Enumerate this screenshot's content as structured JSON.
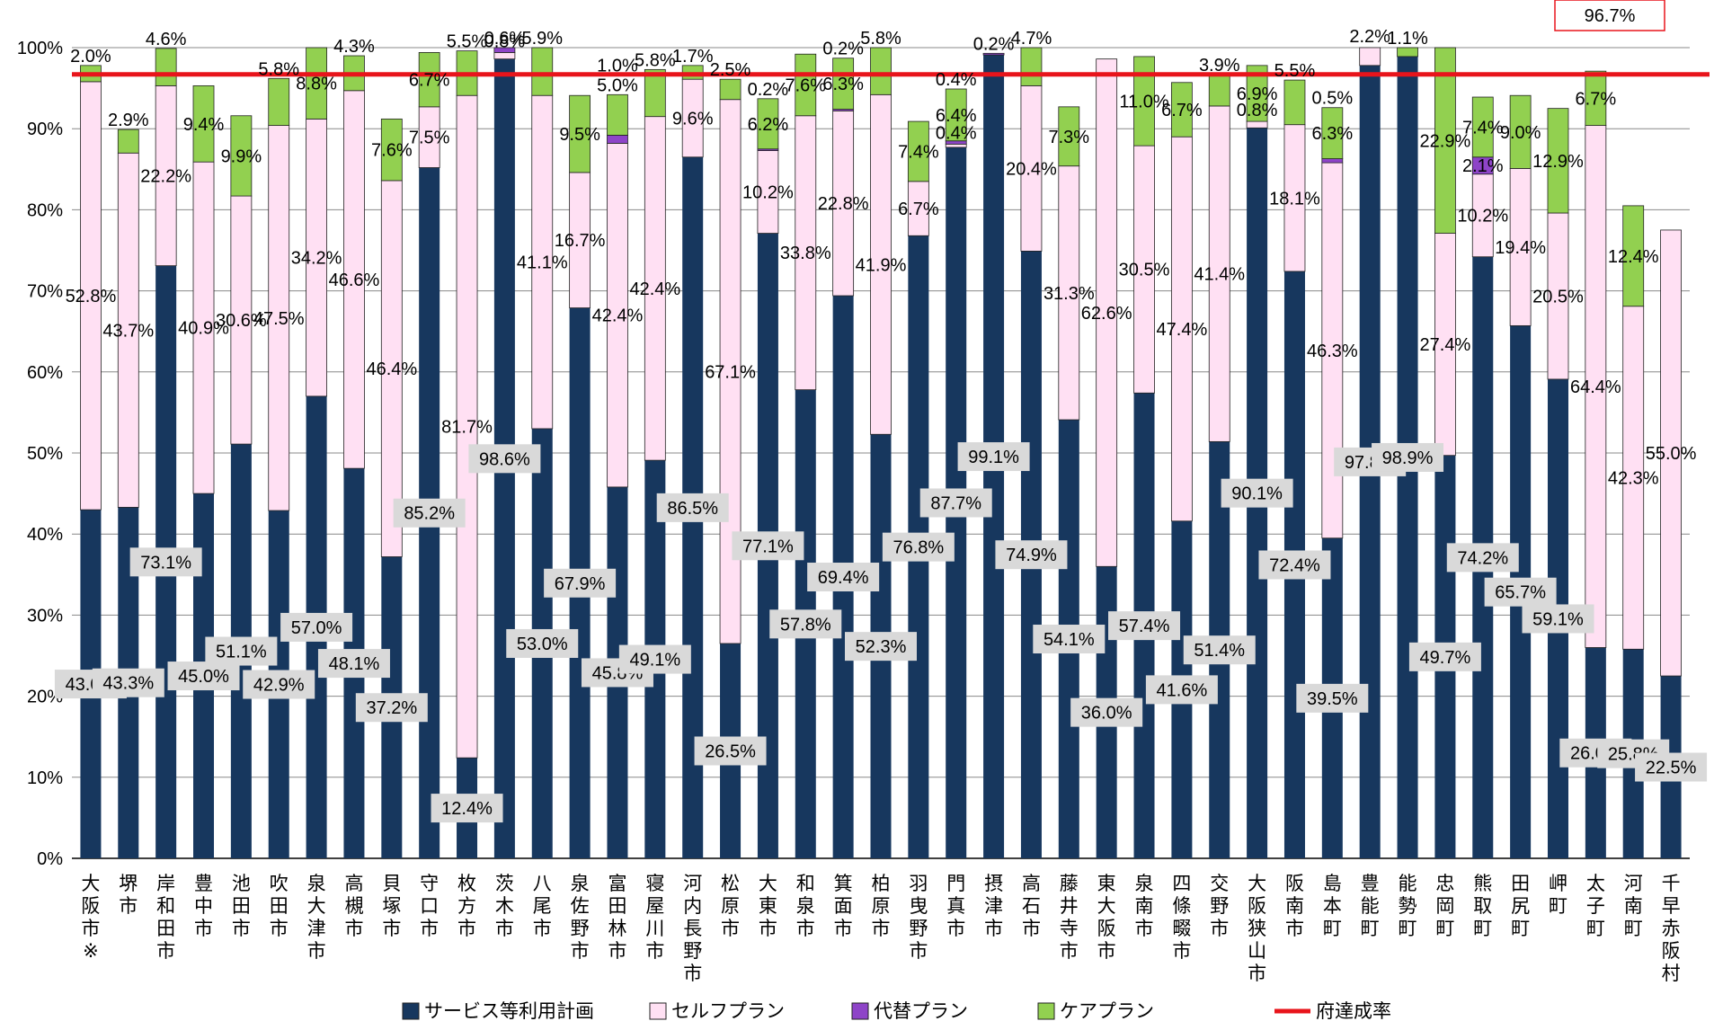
{
  "chart_data": {
    "type": "bar",
    "stacked": true,
    "ylim": [
      0,
      100
    ],
    "y_ticks": [
      "0%",
      "10%",
      "20%",
      "30%",
      "40%",
      "50%",
      "60%",
      "70%",
      "80%",
      "90%",
      "100%"
    ],
    "grid": true,
    "legend_position": "bottom",
    "categories": [
      "大阪市※",
      "堺市",
      "岸和田市",
      "豊中市",
      "池田市",
      "吹田市",
      "泉大津市",
      "高槻市",
      "貝塚市",
      "守口市",
      "枚方市",
      "茨木市",
      "八尾市",
      "泉佐野市",
      "富田林市",
      "寝屋川市",
      "河内長野市",
      "松原市",
      "大東市",
      "和泉市",
      "箕面市",
      "柏原市",
      "羽曳野市",
      "門真市",
      "摂津市",
      "高石市",
      "藤井寺市",
      "東大阪市",
      "泉南市",
      "四條畷市",
      "交野市",
      "大阪狭山市",
      "阪南市",
      "島本町",
      "豊能町",
      "能勢町",
      "忠岡町",
      "熊取町",
      "田尻町",
      "岬町",
      "太子町",
      "河南町",
      "千早赤阪村"
    ],
    "series": [
      {
        "name": "サービス等利用計画",
        "color": "#17375E",
        "values": [
          43.0,
          43.3,
          73.1,
          45.0,
          51.1,
          42.9,
          57.0,
          48.1,
          37.2,
          85.2,
          12.4,
          98.6,
          53.0,
          67.9,
          45.8,
          49.1,
          86.5,
          26.5,
          77.1,
          57.8,
          69.4,
          52.3,
          76.8,
          87.7,
          99.1,
          74.9,
          54.1,
          36.0,
          57.4,
          41.6,
          51.4,
          90.1,
          72.4,
          39.5,
          97.8,
          98.9,
          49.7,
          74.2,
          65.7,
          59.1,
          26.0,
          25.8,
          22.5
        ],
        "labels": [
          "43.0%",
          "43.3%",
          "73.1%",
          "45.0%",
          "51.1%",
          "42.9%",
          "57.0%",
          "48.1%",
          "37.2%",
          "85.2%",
          "12.4%",
          "98.6%",
          "53.0%",
          "67.9%",
          "45.8%",
          "49.1%",
          "86.5%",
          "26.5%",
          "77.1%",
          "57.8%",
          "69.4%",
          "52.3%",
          "76.8%",
          "87.7%",
          "99.1%",
          "74.9%",
          "54.1%",
          "36.0%",
          "57.4%",
          "41.6%",
          "51.4%",
          "90.1%",
          "72.4%",
          "39.5%",
          "97.8%",
          "98.9%",
          "49.7%",
          "74.2%",
          "65.7%",
          "59.1%",
          "26.0%",
          "25.8%",
          "22.5%"
        ]
      },
      {
        "name": "セルフプラン",
        "color": "#FFE0F3",
        "values": [
          52.8,
          43.7,
          22.2,
          40.9,
          30.6,
          47.5,
          34.2,
          46.6,
          46.4,
          7.5,
          81.7,
          0.8,
          41.1,
          16.7,
          42.4,
          42.4,
          9.6,
          67.1,
          10.2,
          33.8,
          22.8,
          41.9,
          6.7,
          0.4,
          0,
          20.4,
          31.3,
          62.6,
          30.5,
          47.4,
          41.4,
          0.8,
          18.1,
          46.3,
          2.2,
          0,
          27.4,
          10.2,
          19.4,
          20.5,
          64.4,
          42.3,
          55.0
        ],
        "labels": [
          "52.8%",
          "43.7%",
          "22.2%",
          "40.9%",
          "30.6%",
          "47.5%",
          "34.2%",
          "46.6%",
          "46.4%",
          "7.5%",
          "81.7%",
          "0.8%",
          "41.1%",
          "16.7%",
          "42.4%",
          "42.4%",
          "9.6%",
          "67.1%",
          "10.2%",
          "33.8%",
          "22.8%",
          "41.9%",
          "6.7%",
          "0.4%",
          "",
          "20.4%",
          "31.3%",
          "62.6%",
          "30.5%",
          "47.4%",
          "41.4%",
          "0.8%",
          "18.1%",
          "46.3%",
          "2.2%",
          "",
          "27.4%",
          "10.2%",
          "19.4%",
          "20.5%",
          "64.4%",
          "42.3%",
          "55.0%"
        ]
      },
      {
        "name": "代替プラン",
        "color": "#8E44C8",
        "values": [
          0,
          0,
          0,
          0,
          0,
          0,
          0,
          0,
          0,
          0,
          0,
          0.6,
          0,
          0,
          1.0,
          0,
          0,
          0,
          0.2,
          0,
          0.2,
          0,
          0,
          0.4,
          0.2,
          0,
          0,
          0,
          0,
          0,
          0,
          0,
          0,
          0.5,
          0,
          0,
          0,
          2.1,
          0,
          0,
          0,
          0,
          0
        ],
        "labels": [
          "",
          "",
          "",
          "",
          "",
          "",
          "",
          "",
          "",
          "",
          "",
          "0.6%",
          "",
          "",
          "1.0%",
          "",
          "",
          "",
          "0.2%",
          "",
          "0.2%",
          "",
          "",
          "0.4%",
          "0.2%",
          "",
          "",
          "",
          "",
          "",
          "",
          "",
          "",
          "0.5%",
          "",
          "",
          "",
          "2.1%",
          "",
          "",
          "",
          "",
          ""
        ]
      },
      {
        "name": "ケアプラン",
        "color": "#92D050",
        "values": [
          2.0,
          2.9,
          4.6,
          9.4,
          9.9,
          5.8,
          8.8,
          4.3,
          7.6,
          6.7,
          5.5,
          0,
          5.9,
          9.5,
          5.0,
          5.8,
          1.7,
          2.5,
          6.2,
          7.6,
          6.3,
          5.8,
          7.4,
          6.4,
          0,
          4.7,
          7.3,
          0,
          11.0,
          6.7,
          3.9,
          6.9,
          5.5,
          6.3,
          0,
          1.1,
          22.9,
          7.4,
          9.0,
          12.9,
          6.7,
          12.4,
          0
        ],
        "labels": [
          "2.0%",
          "2.9%",
          "4.6%",
          "9.4%",
          "9.9%",
          "5.8%",
          "8.8%",
          "4.3%",
          "7.6%",
          "6.7%",
          "5.5%",
          "",
          "5.9%",
          "9.5%",
          "5.0%",
          "5.8%",
          "1.7%",
          "2.5%",
          "6.2%",
          "7.6%",
          "6.3%",
          "5.8%",
          "7.4%",
          "6.4%",
          "",
          "4.7%",
          "7.3%",
          "",
          "11.0%",
          "6.7%",
          "3.9%",
          "6.9%",
          "5.5%",
          "6.3%",
          "",
          "1.1%",
          "22.9%",
          "7.4%",
          "9.0%",
          "12.9%",
          "6.7%",
          "12.4%",
          ""
        ]
      }
    ],
    "reference_line": {
      "name": "府達成率",
      "value": 96.7,
      "label": "96.7%",
      "color": "#E8141B"
    }
  }
}
